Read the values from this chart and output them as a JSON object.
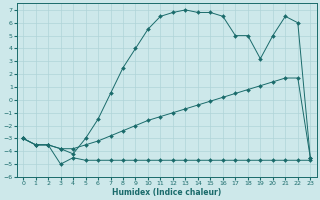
{
  "xlabel": "Humidex (Indice chaleur)",
  "xlim": [
    -0.5,
    23.5
  ],
  "ylim": [
    -6,
    7.5
  ],
  "xticks": [
    0,
    1,
    2,
    3,
    4,
    5,
    6,
    7,
    8,
    9,
    10,
    11,
    12,
    13,
    14,
    15,
    16,
    17,
    18,
    19,
    20,
    21,
    22,
    23
  ],
  "yticks": [
    -6,
    -5,
    -4,
    -3,
    -2,
    -1,
    0,
    1,
    2,
    3,
    4,
    5,
    6,
    7
  ],
  "bg_color": "#cde8ea",
  "grid_color": "#b0d4d8",
  "line_color": "#1a6b6b",
  "line1_x": [
    0,
    1,
    2,
    3,
    4,
    5,
    6,
    7,
    8,
    9,
    10,
    11,
    12,
    13,
    14,
    15,
    16,
    17,
    18,
    19,
    20,
    21,
    22,
    23
  ],
  "line1_y": [
    -3.0,
    -3.5,
    -3.5,
    -5.0,
    -4.5,
    -4.7,
    -4.7,
    -4.7,
    -4.7,
    -4.7,
    -4.7,
    -4.7,
    -4.7,
    -4.7,
    -4.7,
    -4.7,
    -4.7,
    -4.7,
    -4.7,
    -4.7,
    -4.7,
    -4.7,
    -4.7,
    -4.7
  ],
  "line2_x": [
    0,
    1,
    2,
    3,
    4,
    5,
    6,
    7,
    8,
    9,
    10,
    11,
    12,
    13,
    14,
    15,
    16,
    17,
    18,
    19,
    20,
    21,
    22,
    23
  ],
  "line2_y": [
    -3.0,
    -3.5,
    -3.5,
    -3.8,
    -3.8,
    -3.5,
    -3.2,
    -2.8,
    -2.4,
    -2.0,
    -1.6,
    -1.3,
    -1.0,
    -0.7,
    -0.4,
    -0.1,
    0.2,
    0.5,
    0.8,
    1.1,
    1.4,
    1.7,
    1.7,
    -4.5
  ],
  "line3_x": [
    0,
    1,
    2,
    3,
    4,
    5,
    6,
    7,
    8,
    9,
    10,
    11,
    12,
    13,
    14,
    15,
    16,
    17,
    18,
    19,
    20,
    21,
    22,
    23
  ],
  "line3_y": [
    -3.0,
    -3.5,
    -3.5,
    -3.8,
    -4.2,
    -3.0,
    -1.5,
    0.5,
    2.5,
    4.0,
    5.5,
    6.5,
    6.8,
    7.0,
    6.8,
    6.8,
    6.5,
    5.0,
    5.0,
    3.2,
    5.0,
    6.5,
    6.0,
    -4.5
  ]
}
